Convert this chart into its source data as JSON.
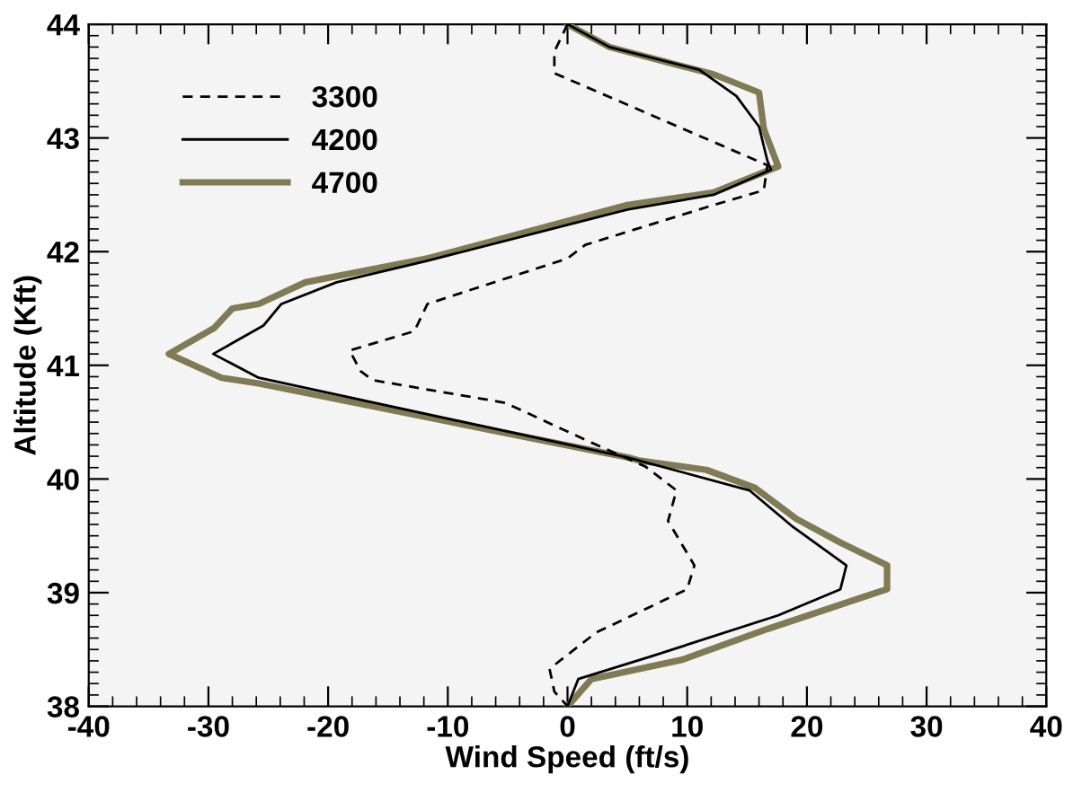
{
  "chart_data": {
    "type": "line",
    "xlabel": "Wind Speed (ft/s)",
    "ylabel": "Altitude (Kft)",
    "xlim": [
      -40,
      40
    ],
    "xticks": [
      -40,
      -30,
      -20,
      -10,
      0,
      10,
      20,
      30,
      40
    ],
    "ylim": [
      38,
      44
    ],
    "yticks": [
      38,
      39,
      40,
      41,
      42,
      43,
      44
    ],
    "grid": false,
    "legend": "top left",
    "marker": "none",
    "series": [
      {
        "name": "3300",
        "color": "#000000",
        "line_style": "dashed",
        "x": [
          0,
          -1.1,
          -1.1,
          16.7,
          16.4,
          12.2,
          1.5,
          0,
          -11.7,
          -12.8,
          -18.2,
          -17.3,
          -16.3,
          -5.2,
          2,
          6.5,
          9.1,
          8.4,
          10.6,
          10,
          2.4,
          -1.5,
          -1.1,
          0
        ],
        "values": [
          44,
          43.76,
          43.57,
          42.76,
          42.54,
          42.41,
          42.06,
          41.94,
          41.54,
          41.3,
          41.13,
          40.95,
          40.87,
          40.67,
          40.32,
          40.11,
          39.9,
          39.63,
          39.24,
          39.03,
          38.65,
          38.33,
          38.13,
          38
        ]
      },
      {
        "name": "4200",
        "color": "#000000",
        "line_style": "solid",
        "x": [
          0,
          3.5,
          11,
          14.1,
          16,
          16.7,
          17,
          12.2,
          5,
          -11.7,
          -19.3,
          -23.9,
          -25.4,
          -29.6,
          -25.8,
          5,
          15.2,
          18.7,
          23.3,
          22.8,
          17.6,
          7,
          0.9,
          0
        ],
        "values": [
          44,
          43.8,
          43.6,
          43.37,
          43.1,
          42.8,
          42.72,
          42.5,
          42.37,
          41.92,
          41.73,
          41.54,
          41.35,
          41.1,
          40.89,
          40.19,
          39.9,
          39.59,
          39.24,
          39.03,
          38.8,
          38.44,
          38.24,
          38
        ]
      },
      {
        "name": "4700",
        "color": "#807a55",
        "line_style": "solid",
        "x": [
          0,
          3.5,
          12.2,
          16,
          16.4,
          17.6,
          12.2,
          5,
          -11.7,
          -21.9,
          -25.8,
          -28,
          -29.5,
          -33.3,
          -28.9,
          -25.8,
          5,
          6.1,
          11.6,
          15.7,
          19.1,
          22.8,
          26.7,
          26.7,
          25.8,
          16.7,
          9.6,
          2,
          0
        ],
        "values": [
          44,
          43.8,
          43.56,
          43.4,
          43.08,
          42.75,
          42.52,
          42.41,
          41.94,
          41.73,
          41.54,
          41.5,
          41.33,
          41.1,
          40.89,
          40.84,
          40.19,
          40.16,
          40.08,
          39.92,
          39.65,
          39.44,
          39.24,
          39.03,
          39.0,
          38.68,
          38.41,
          38.24,
          38
        ]
      }
    ]
  }
}
